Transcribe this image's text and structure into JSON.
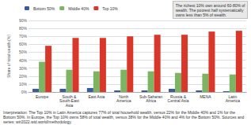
{
  "chart_data": {
    "type": "bar",
    "categories": [
      "Europe",
      "South &\nSouth-East\nAsia",
      "East Asia",
      "North\nAmerica",
      "Sub-Saharan\nAfrica",
      "Russia &\nCentral Asia",
      "MENA",
      "Latin\nAmerica"
    ],
    "series": [
      {
        "name": "Bottom 50%",
        "color": "#3a5ba0",
        "values": [
          4,
          4,
          5,
          2,
          2,
          4,
          2,
          1
        ]
      },
      {
        "name": "Middle 40%",
        "color": "#7db462",
        "values": [
          38,
          28,
          26,
          28,
          26,
          24,
          23,
          22
        ]
      },
      {
        "name": "Top 10%",
        "color": "#d9372a",
        "values": [
          58,
          68,
          68,
          70,
          72,
          72,
          76,
          77
        ]
      }
    ],
    "ylabel": "Share of total wealth (%)",
    "ylim": [
      0,
      90
    ],
    "yticks": [
      {
        "value": 0,
        "label": "0%"
      },
      {
        "value": 10,
        "label": "10%"
      },
      {
        "value": 20,
        "label": "20%"
      },
      {
        "value": 30,
        "label": "30%"
      },
      {
        "value": 40,
        "label": "40%"
      },
      {
        "value": 50,
        "label": "50%"
      },
      {
        "value": 60,
        "label": "60%"
      },
      {
        "value": 70,
        "label": "70%"
      },
      {
        "value": 80,
        "label": "80%"
      },
      {
        "value": 90,
        "label": "90%"
      }
    ],
    "grid": true,
    "legend": "upper left",
    "annotation": "The richest 10% own around 60-80% of\nwealth. The poorest half systematically\nowns less than 5% of wealth.",
    "caption": "Interpretation: The Top 10% in Latin America captures 77% of total household wealth, versus 22% for the Middle 40% and 1% for the Bottom 50%. In Europe, the Top 10% owns 58% of total wealth, versus 38% for the Middle 40% and 4% for the Bottom 50%. Sources and series: wir2022.wid.world/methodology."
  }
}
